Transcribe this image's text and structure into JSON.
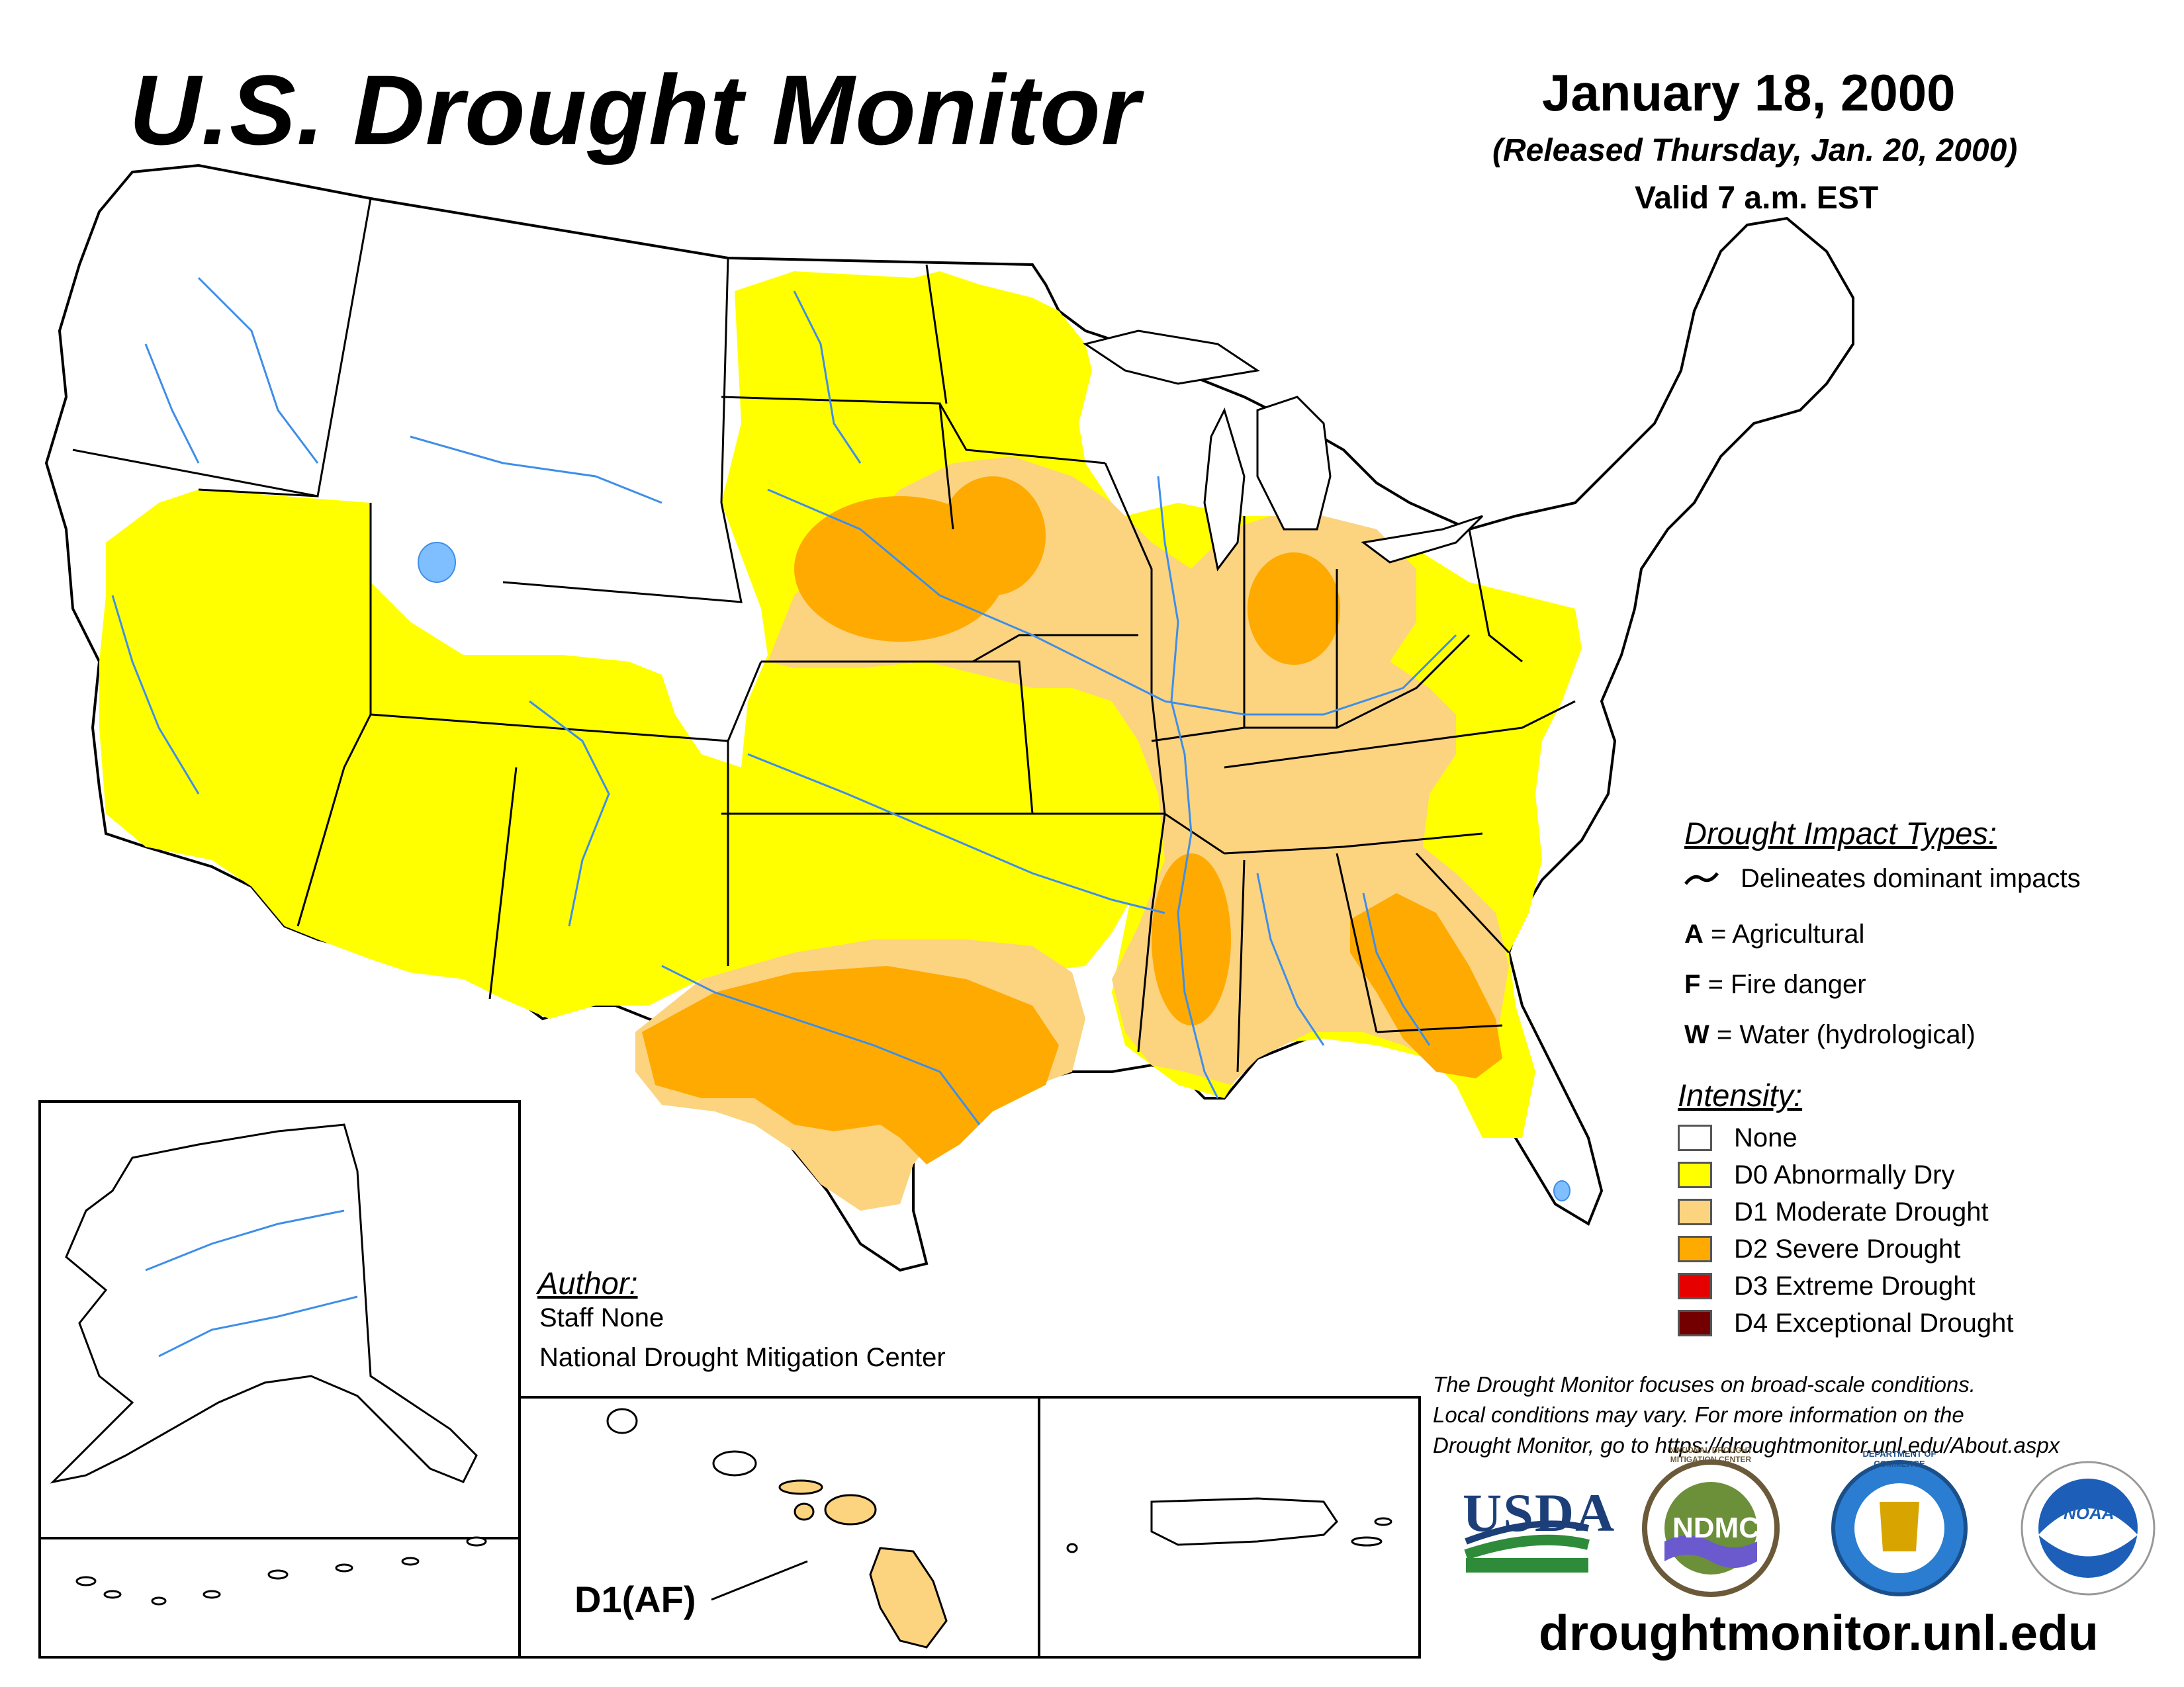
{
  "header": {
    "title": "U.S. Drought Monitor",
    "date": "January 18, 2000",
    "released": "(Released Thursday, Jan. 20, 2000)",
    "valid": "Valid 7 a.m. EST"
  },
  "impact_types": {
    "heading": "Drought Impact Types:",
    "items": [
      {
        "symbol": "~",
        "label": "Delineates dominant impacts"
      },
      {
        "symbol": "A",
        "label": "= Agricultural"
      },
      {
        "symbol": "F",
        "label": "= Fire danger"
      },
      {
        "symbol": "W",
        "label": "= Water (hydrological)"
      }
    ]
  },
  "intensity": {
    "heading": "Intensity:",
    "items": [
      {
        "label": "None",
        "color": "#ffffff"
      },
      {
        "label": "D0 Abnormally Dry",
        "color": "#ffff00"
      },
      {
        "label": "D1 Moderate Drought",
        "color": "#fcd37f"
      },
      {
        "label": "D2 Severe Drought",
        "color": "#ffaa00"
      },
      {
        "label": "D3 Extreme Drought",
        "color": "#e60000"
      },
      {
        "label": "D4 Exceptional Drought",
        "color": "#730000"
      }
    ]
  },
  "author": {
    "heading": "Author:",
    "name": "Staff None",
    "org": "National Drought Mitigation Center"
  },
  "hawaii_label": "D1(AF)",
  "disclaimer": {
    "line1": "The Drought Monitor focuses on broad-scale conditions.",
    "line2": "Local conditions may vary. For more information on the",
    "line3": "Drought Monitor, go to https://droughtmonitor.unl.edu/About.aspx"
  },
  "logos": {
    "usda": "USDA",
    "ndmc": "NDMC",
    "ndmc_ring": "NATIONAL DROUGHT MITIGATION CENTER",
    "doc_ring": "DEPARTMENT OF COMMERCE",
    "noaa": "NOAA"
  },
  "website": "droughtmonitor.unl.edu",
  "colors": {
    "water": "#7fbfff",
    "river": "#3e8ee8",
    "border": "#000000"
  }
}
